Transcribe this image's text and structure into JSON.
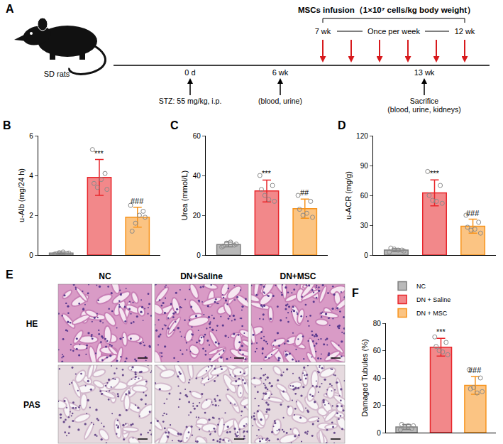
{
  "timeline": {
    "panel": "A",
    "animal": "SD rats",
    "infusion": {
      "title": "MSCs infusion（1×10⁷ cells/kg body weight）",
      "start": "7 wk",
      "frequency": "Once per week",
      "end": "12 wk",
      "weeks": [
        7,
        8,
        9,
        10,
        11,
        12
      ]
    },
    "events": [
      {
        "label": "0 d",
        "notes": [
          "STZ: 55 mg/kg, i.p."
        ]
      },
      {
        "label": "6 wk",
        "notes": [
          "(blood, urine)"
        ]
      },
      {
        "label": "13 wk",
        "notes": [
          "Sacrifice",
          "(blood, urine, kidneys)"
        ]
      }
    ]
  },
  "histology": {
    "panel": "E",
    "columns": [
      "NC",
      "DN+Saline",
      "DN+MSC"
    ],
    "rows": [
      "HE",
      "PAS"
    ]
  },
  "chart_data": [
    {
      "panel": "B",
      "type": "bar",
      "y_label": "u-Alb (mg/24 h)",
      "categories": [
        null,
        null,
        null
      ],
      "values": [
        0.1,
        3.9,
        1.9
      ],
      "errors": [
        0.05,
        0.9,
        0.5
      ],
      "points": [
        [
          0.04,
          0.08,
          0.12,
          0.1,
          0.06,
          0.15
        ],
        [
          5.3,
          4.1,
          3.4,
          3.3,
          3.6,
          3.8
        ],
        [
          2.5,
          2.2,
          1.6,
          1.9,
          1.2,
          2.0
        ]
      ],
      "colors": [
        "#7f7f7f",
        "#e8262b",
        "#f7941d"
      ],
      "annotations": [
        {
          "category": 1,
          "text": "***"
        },
        {
          "category": 2,
          "text": "###"
        }
      ],
      "ylim": [
        0,
        6
      ],
      "yticks": [
        0,
        2,
        4,
        6
      ],
      "tick_labels": "y",
      "grid": false
    },
    {
      "panel": "C",
      "type": "bar",
      "y_label": "Urea (mmol/L)",
      "categories": [
        null,
        null,
        null
      ],
      "values": [
        5.3,
        32.2,
        23.3
      ],
      "errors": [
        1.2,
        5.5,
        4.8
      ],
      "points": [
        [
          4,
          5,
          6,
          5.5,
          4.5,
          6.5
        ],
        [
          40,
          35,
          30,
          27,
          33,
          28
        ],
        [
          30,
          27,
          20,
          19,
          23,
          21
        ]
      ],
      "colors": [
        "#7f7f7f",
        "#e8262b",
        "#f7941d"
      ],
      "annotations": [
        {
          "category": 1,
          "text": "***"
        },
        {
          "category": 2,
          "text": "##"
        }
      ],
      "ylim": [
        0,
        60
      ],
      "yticks": [
        0,
        20,
        40,
        60
      ],
      "tick_labels": "y",
      "grid": false
    },
    {
      "panel": "D",
      "type": "bar",
      "y_label": "u-ACR (mg/g)",
      "categories": [
        null,
        null,
        null
      ],
      "values": [
        5,
        62.5,
        29
      ],
      "errors": [
        1.6,
        13,
        7
      ],
      "points": [
        [
          3,
          5,
          6,
          4,
          7,
          5
        ],
        [
          84,
          70,
          55,
          52,
          60,
          54
        ],
        [
          40,
          33,
          25,
          22,
          28,
          26
        ]
      ],
      "colors": [
        "#7f7f7f",
        "#e8262b",
        "#f7941d"
      ],
      "annotations": [
        {
          "category": 1,
          "text": "***"
        },
        {
          "category": 2,
          "text": "###"
        }
      ],
      "ylim": [
        0,
        120
      ],
      "yticks": [
        0,
        30,
        60,
        90,
        120
      ],
      "tick_labels": "y",
      "grid": false
    },
    {
      "panel": "F",
      "type": "bar",
      "y_label": "Damaged Tubules (%)",
      "categories": [
        null,
        null,
        null
      ],
      "series": [
        {
          "name": "NC",
          "color": "#7f7f7f",
          "values": [
            4.2,
            null,
            null
          ],
          "error": [
            1.8,
            null,
            null
          ],
          "points": [
            2,
            3,
            4,
            5,
            6,
            5
          ]
        },
        {
          "name": "DN + Saline",
          "color": "#e8262b",
          "values": [
            null,
            62.5,
            null
          ],
          "error": [
            null,
            6.5,
            null
          ],
          "points": [
            70,
            66,
            60,
            57,
            63,
            59
          ]
        },
        {
          "name": "DN + MSC",
          "color": "#f7941d",
          "values": [
            null,
            null,
            34.5
          ],
          "error": [
            null,
            null,
            6.5
          ],
          "points": [
            46,
            40,
            33,
            30,
            32,
            29
          ]
        }
      ],
      "annotations": [
        {
          "category": 1,
          "text": "***"
        },
        {
          "category": 2,
          "text": "###"
        }
      ],
      "ylim": [
        0,
        80
      ],
      "yticks": [
        0,
        20,
        40,
        60,
        80
      ],
      "tick_labels": "y",
      "legend": "top left",
      "grid": false
    }
  ]
}
